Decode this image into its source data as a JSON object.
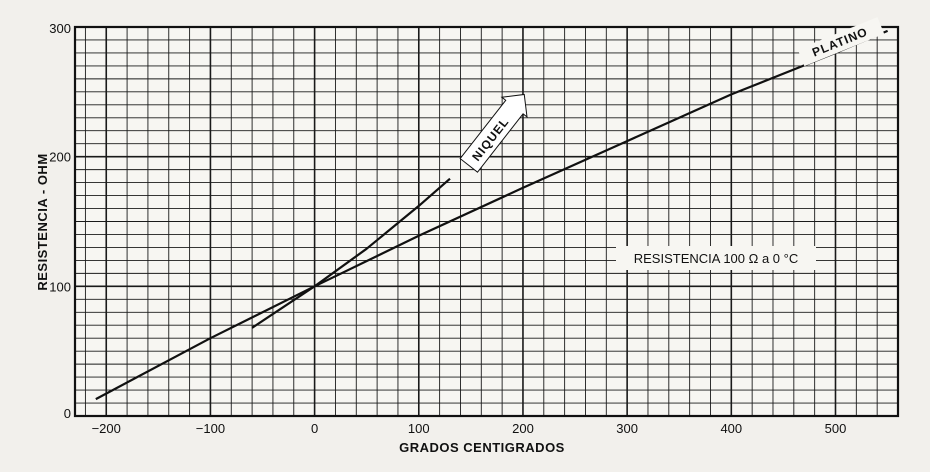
{
  "chart_data": {
    "type": "line",
    "xlabel": "GRADOS CENTIGRADOS",
    "ylabel": "RESISTENCIA - OHM",
    "xlim": [
      -230,
      560
    ],
    "ylim": [
      0,
      300
    ],
    "x_ticks": [
      -200,
      -100,
      0,
      100,
      200,
      300,
      400,
      500
    ],
    "x_tick_labels": [
      "−200",
      "−100",
      "0",
      "100",
      "200",
      "300",
      "400",
      "500"
    ],
    "y_ticks": [
      0,
      100,
      200,
      300
    ],
    "y_tick_labels": [
      "0",
      "100",
      "200",
      "300"
    ],
    "grid": true,
    "annotation": "RESISTENCIA 100 Ω a 0 °C",
    "series": [
      {
        "name": "PLATINO",
        "x": [
          -210,
          -100,
          0,
          100,
          200,
          300,
          400,
          500,
          550
        ],
        "y": [
          13,
          60,
          100,
          139,
          176,
          212,
          248,
          280,
          297
        ]
      },
      {
        "name": "NIQUEL",
        "x": [
          -60,
          0,
          50,
          100,
          130
        ],
        "y": [
          68,
          100,
          129,
          162,
          183
        ]
      }
    ]
  }
}
